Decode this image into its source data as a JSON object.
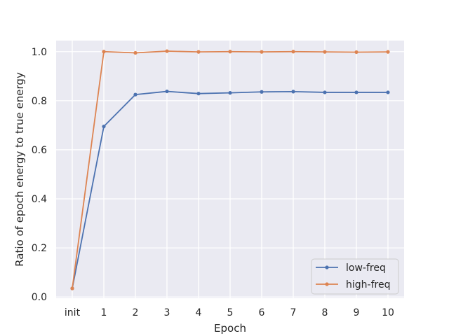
{
  "chart_data": {
    "type": "line",
    "title": "",
    "xlabel": "Epoch",
    "ylabel": "Ratio of epoch energy to true energy",
    "categories": [
      "init",
      "1",
      "2",
      "3",
      "4",
      "5",
      "6",
      "7",
      "8",
      "9",
      "10"
    ],
    "ylim": [
      -0.005,
      1.045
    ],
    "yticks": [
      0.0,
      0.2,
      0.4,
      0.6,
      0.8,
      1.0
    ],
    "ytick_labels": [
      "0.0",
      "0.2",
      "0.4",
      "0.6",
      "0.8",
      "1.0"
    ],
    "grid": true,
    "legend_position": "lower-right",
    "series": [
      {
        "name": "low-freq",
        "color": "#4c72b0",
        "values": [
          0.035,
          0.695,
          0.825,
          0.838,
          0.829,
          0.832,
          0.836,
          0.837,
          0.834,
          0.834,
          0.834
        ]
      },
      {
        "name": "high-freq",
        "color": "#dd8452",
        "values": [
          0.035,
          1.0,
          0.995,
          1.002,
          0.999,
          1.0,
          0.999,
          1.0,
          0.999,
          0.998,
          0.999
        ]
      }
    ],
    "plot_background": "#eaeaf2",
    "grid_color": "#ffffff"
  }
}
